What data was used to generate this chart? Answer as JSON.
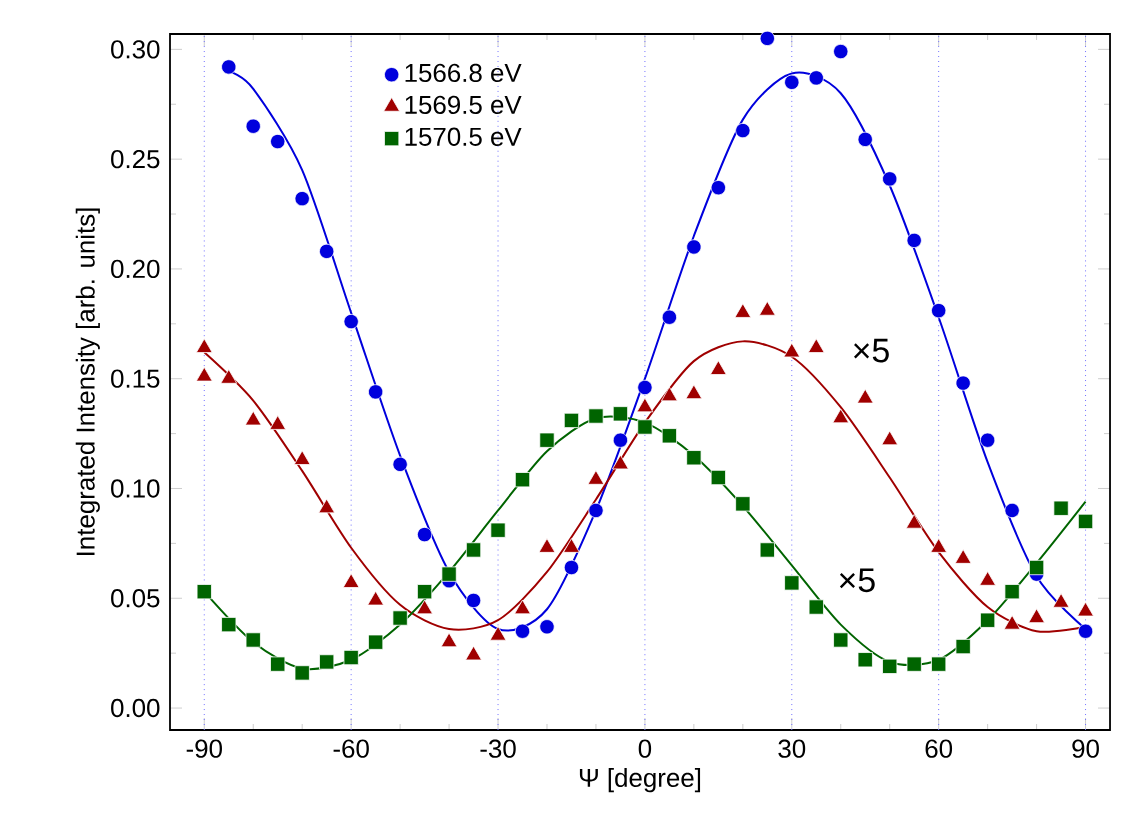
{
  "chart_data": {
    "type": "scatter",
    "xlabel": "Ψ [degree]",
    "ylabel": "Integrated Intensity [arb. units]",
    "xlim": [
      -97,
      95
    ],
    "ylim": [
      -0.01,
      0.307
    ],
    "xticks": [
      -90,
      -60,
      -30,
      0,
      30,
      60,
      90
    ],
    "yticks": [
      {
        "value": 0,
        "label": "0.00"
      },
      {
        "value": 0.05,
        "label": "0.05"
      },
      {
        "value": 0.1,
        "label": "0.10"
      },
      {
        "value": 0.15,
        "label": "0.15"
      },
      {
        "value": 0.2,
        "label": "0.20"
      },
      {
        "value": 0.25,
        "label": "0.25"
      },
      {
        "value": 0.3,
        "label": "0.30"
      }
    ],
    "grid": false,
    "legend": "top left",
    "series": [
      {
        "name": "1566.8 eV",
        "marker": "circle",
        "color": "#0000dd",
        "x": [
          -85,
          -80,
          -75,
          -70,
          -65,
          -60,
          -55,
          -50,
          -45,
          -40,
          -35,
          -25,
          -20,
          -15,
          -10,
          -5,
          0,
          5,
          10,
          15,
          20,
          25,
          30,
          35,
          40,
          45,
          50,
          55,
          60,
          65,
          70,
          75,
          80,
          90
        ],
        "values": [
          0.292,
          0.265,
          0.258,
          0.232,
          0.208,
          0.176,
          0.144,
          0.111,
          0.079,
          0.058,
          0.049,
          0.035,
          0.037,
          0.064,
          0.09,
          0.122,
          0.146,
          0.178,
          0.21,
          0.237,
          0.263,
          0.305,
          0.285,
          0.287,
          0.299,
          0.259,
          0.241,
          0.213,
          0.181,
          0.148,
          0.122,
          0.09,
          0.061,
          0.035
        ]
      },
      {
        "name": "1569.5 eV",
        "marker": "triangle",
        "color": "#a00000",
        "x": [
          -90,
          -90,
          -85,
          -80,
          -75,
          -70,
          -65,
          -60,
          -55,
          -45,
          -40,
          -35,
          -30,
          -25,
          -20,
          -15,
          -10,
          -5,
          0,
          5,
          10,
          15,
          20,
          25,
          30,
          35,
          40,
          45,
          50,
          55,
          60,
          65,
          70,
          75,
          80,
          85,
          90
        ],
        "values": [
          0.164,
          0.151,
          0.15,
          0.131,
          0.129,
          0.113,
          0.091,
          0.057,
          0.049,
          0.045,
          0.03,
          0.024,
          0.033,
          0.045,
          0.073,
          0.073,
          0.104,
          0.111,
          0.137,
          0.142,
          0.143,
          0.154,
          0.18,
          0.181,
          0.162,
          0.164,
          0.132,
          0.141,
          0.122,
          0.084,
          0.073,
          0.068,
          0.058,
          0.038,
          0.041,
          0.048,
          0.044
        ]
      },
      {
        "name": "1570.5 eV",
        "marker": "square",
        "color": "#006400",
        "x": [
          -90,
          -85,
          -80,
          -75,
          -70,
          -65,
          -60,
          -55,
          -50,
          -45,
          -40,
          -35,
          -30,
          -25,
          -20,
          -15,
          -10,
          -5,
          0,
          5,
          10,
          15,
          20,
          25,
          30,
          35,
          40,
          45,
          50,
          55,
          60,
          65,
          70,
          75,
          80,
          85,
          90
        ],
        "values": [
          0.053,
          0.038,
          0.031,
          0.02,
          0.016,
          0.021,
          0.023,
          0.03,
          0.041,
          0.053,
          0.061,
          0.072,
          0.081,
          0.104,
          0.122,
          0.131,
          0.133,
          0.134,
          0.128,
          0.124,
          0.114,
          0.105,
          0.093,
          0.072,
          0.057,
          0.046,
          0.031,
          0.022,
          0.019,
          0.02,
          0.02,
          0.028,
          0.04,
          0.053,
          0.064,
          0.091,
          0.085
        ]
      },
      {
        "type": "line",
        "color": "#0000dd",
        "x": [
          -85,
          -80,
          -70,
          -60,
          -50,
          -40,
          -30,
          -20,
          -10,
          0,
          10,
          20,
          30,
          40,
          50,
          60,
          70,
          80,
          90
        ],
        "values": [
          0.29,
          0.282,
          0.245,
          0.18,
          0.115,
          0.062,
          0.036,
          0.045,
          0.09,
          0.15,
          0.215,
          0.268,
          0.289,
          0.28,
          0.238,
          0.178,
          0.112,
          0.06,
          0.036
        ]
      },
      {
        "type": "line",
        "color": "#a00000",
        "x": [
          -90,
          -80,
          -70,
          -60,
          -50,
          -40,
          -30,
          -20,
          -10,
          0,
          10,
          20,
          30,
          40,
          50,
          60,
          70,
          80,
          90
        ],
        "values": [
          0.162,
          0.14,
          0.108,
          0.073,
          0.047,
          0.036,
          0.04,
          0.062,
          0.095,
          0.13,
          0.158,
          0.167,
          0.16,
          0.137,
          0.105,
          0.071,
          0.046,
          0.035,
          0.037
        ]
      },
      {
        "type": "line",
        "color": "#006400",
        "x": [
          -90,
          -80,
          -70,
          -60,
          -50,
          -40,
          -30,
          -20,
          -10,
          0,
          10,
          20,
          30,
          40,
          50,
          60,
          70,
          80,
          90
        ],
        "values": [
          0.053,
          0.03,
          0.018,
          0.022,
          0.038,
          0.062,
          0.09,
          0.117,
          0.132,
          0.13,
          0.115,
          0.092,
          0.065,
          0.038,
          0.021,
          0.022,
          0.04,
          0.066,
          0.094
        ]
      }
    ],
    "ref_lines": [
      {
        "axis": "x",
        "value": -90,
        "color": "#7070ff",
        "line_style": "dotted"
      },
      {
        "axis": "x",
        "value": -60,
        "color": "#7070ff",
        "line_style": "dotted"
      },
      {
        "axis": "x",
        "value": -30,
        "color": "#7070ff",
        "line_style": "dotted"
      },
      {
        "axis": "x",
        "value": 0,
        "color": "#7070ff",
        "line_style": "dotted"
      },
      {
        "axis": "x",
        "value": 30,
        "color": "#7070ff",
        "line_style": "dotted"
      },
      {
        "axis": "x",
        "value": 60,
        "color": "#7070ff",
        "line_style": "dotted"
      },
      {
        "axis": "x",
        "value": 90,
        "color": "#7070ff",
        "line_style": "dotted"
      }
    ],
    "annotations": [
      "×5",
      "×5"
    ]
  }
}
